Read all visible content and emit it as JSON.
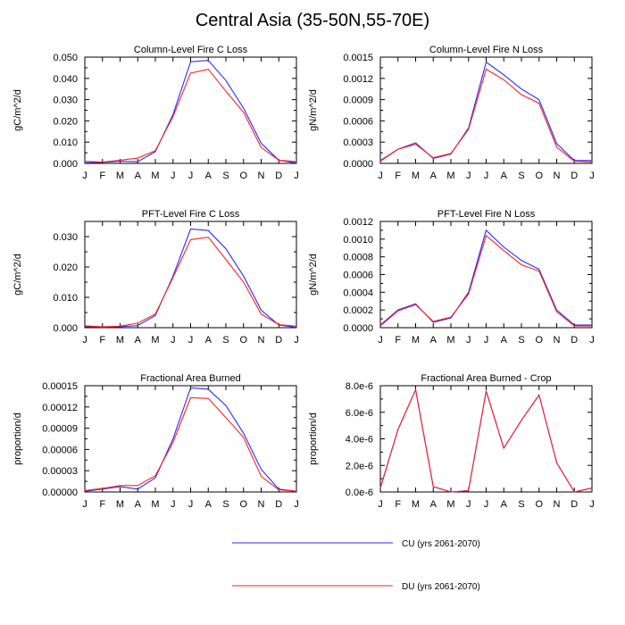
{
  "title": "Central Asia (35-50N,55-70E)",
  "colors": {
    "cu": "#2a2aff",
    "du": "#ff2020"
  },
  "legend": {
    "cu_label": "CU (yrs 2061-2070)",
    "du_label": "DU (yrs 2061-2070)"
  },
  "chart_data": [
    {
      "type": "line",
      "title": "Column-Level Fire C Loss",
      "ylabel": "gC/m^2/d",
      "ylim": [
        0,
        0.05
      ],
      "yticks": [
        0,
        0.01,
        0.02,
        0.03,
        0.04,
        0.05
      ],
      "ytick_labels": [
        "0.000",
        "0.010",
        "0.020",
        "0.030",
        "0.040",
        "0.050"
      ],
      "x_labels": [
        "J",
        "F",
        "M",
        "A",
        "M",
        "J",
        "J",
        "A",
        "S",
        "O",
        "N",
        "D",
        "J"
      ],
      "series": [
        {
          "name": "CU (yrs 2061-2070)",
          "values": [
            0.0003,
            0.0005,
            0.001,
            0.0008,
            0.0055,
            0.023,
            0.0478,
            0.0485,
            0.039,
            0.026,
            0.0095,
            0.0015,
            0.0002
          ]
        },
        {
          "name": "DU (yrs 2061-2070)",
          "values": [
            0.001,
            0.0006,
            0.0015,
            0.0025,
            0.006,
            0.022,
            0.0425,
            0.0443,
            0.034,
            0.024,
            0.0075,
            0.0015,
            0.0008
          ]
        }
      ]
    },
    {
      "type": "line",
      "title": "Column-Level Fire N Loss",
      "ylabel": "gN/m^2/d",
      "ylim": [
        0,
        0.0015
      ],
      "yticks": [
        0,
        0.0003,
        0.0006,
        0.0009,
        0.0012,
        0.0015
      ],
      "ytick_labels": [
        "0.0000",
        "0.0003",
        "0.0006",
        "0.0009",
        "0.0012",
        "0.0015"
      ],
      "x_labels": [
        "J",
        "F",
        "M",
        "A",
        "M",
        "J",
        "J",
        "A",
        "S",
        "O",
        "N",
        "D",
        "J"
      ],
      "series": [
        {
          "name": "CU (yrs 2061-2070)",
          "values": [
            4e-05,
            0.0002,
            0.00029,
            7e-05,
            0.00013,
            0.0005,
            0.00143,
            0.00125,
            0.00105,
            0.0009,
            0.00028,
            4e-05,
            4e-05
          ]
        },
        {
          "name": "DU (yrs 2061-2070)",
          "values": [
            3e-05,
            0.0002,
            0.00027,
            8e-05,
            0.00014,
            0.00048,
            0.00133,
            0.00118,
            0.00097,
            0.00085,
            0.00023,
            3e-05,
            2e-05
          ]
        }
      ]
    },
    {
      "type": "line",
      "title": "PFT-Level Fire C Loss",
      "ylabel": "gC/m^2/d",
      "ylim": [
        0,
        0.035
      ],
      "yticks": [
        0,
        0.01,
        0.02,
        0.03
      ],
      "ytick_labels": [
        "0.000",
        "0.010",
        "0.020",
        "0.030"
      ],
      "x_labels": [
        "J",
        "F",
        "M",
        "A",
        "M",
        "J",
        "J",
        "A",
        "S",
        "O",
        "N",
        "D",
        "J"
      ],
      "series": [
        {
          "name": "CU (yrs 2061-2070)",
          "values": [
            0.0003,
            0.0002,
            0.0003,
            0.0007,
            0.004,
            0.017,
            0.0325,
            0.032,
            0.026,
            0.017,
            0.0058,
            0.0009,
            0.0001
          ]
        },
        {
          "name": "DU (yrs 2061-2070)",
          "values": [
            0.0006,
            0.0003,
            0.0005,
            0.0015,
            0.0045,
            0.0165,
            0.029,
            0.0298,
            0.0225,
            0.015,
            0.0045,
            0.001,
            0.0005
          ]
        }
      ]
    },
    {
      "type": "line",
      "title": "PFT-Level Fire N Loss",
      "ylabel": "gN/m^2/d",
      "ylim": [
        0,
        0.0012
      ],
      "yticks": [
        0,
        0.0002,
        0.0004,
        0.0006,
        0.0008,
        0.001,
        0.0012
      ],
      "ytick_labels": [
        "0.0000",
        "0.0002",
        "0.0004",
        "0.0006",
        "0.0008",
        "0.0010",
        "0.0012"
      ],
      "x_labels": [
        "J",
        "F",
        "M",
        "A",
        "M",
        "J",
        "J",
        "A",
        "S",
        "O",
        "N",
        "D",
        "J"
      ],
      "series": [
        {
          "name": "CU (yrs 2061-2070)",
          "values": [
            3e-05,
            0.0002,
            0.00027,
            6e-05,
            0.00011,
            0.0004,
            0.0011,
            0.00091,
            0.00076,
            0.00066,
            0.0002,
            3e-05,
            3e-05
          ]
        },
        {
          "name": "DU (yrs 2061-2070)",
          "values": [
            2e-05,
            0.00019,
            0.00026,
            7e-05,
            0.00012,
            0.00038,
            0.00104,
            0.00087,
            0.00071,
            0.00064,
            0.00018,
            2e-05,
            2e-05
          ]
        }
      ]
    },
    {
      "type": "line",
      "title": "Fractional Area Burned",
      "ylabel": "proportion/d",
      "ylim": [
        0,
        0.00015
      ],
      "yticks": [
        0,
        3e-05,
        6e-05,
        9e-05,
        0.00012,
        0.00015
      ],
      "ytick_labels": [
        "0.00000",
        "0.00003",
        "0.00006",
        "0.00009",
        "0.00012",
        "0.00015"
      ],
      "x_labels": [
        "J",
        "F",
        "M",
        "A",
        "M",
        "J",
        "J",
        "A",
        "S",
        "O",
        "N",
        "D",
        "J"
      ],
      "series": [
        {
          "name": "CU (yrs 2061-2070)",
          "values": [
            1e-06,
            4e-06,
            7.5e-06,
            4e-06,
            2e-05,
            7.5e-05,
            0.000147,
            0.000145,
            0.000122,
            8.3e-05,
            3.2e-05,
            4e-06,
            1e-06
          ]
        },
        {
          "name": "DU (yrs 2061-2070)",
          "values": [
            2e-06,
            5e-06,
            9e-06,
            9e-06,
            2.3e-05,
            7e-05,
            0.000133,
            0.000132,
            0.000105,
            7.7e-05,
            2.2e-05,
            3e-06,
            1e-06
          ]
        }
      ]
    },
    {
      "type": "line",
      "title": "Fractional Area Burned - Crop",
      "ylabel": "proportion/d",
      "ylim": [
        0,
        8e-06
      ],
      "yticks": [
        0,
        2e-06,
        4e-06,
        6e-06,
        8e-06
      ],
      "ytick_labels": [
        "0.0e-6",
        "2.0e-6",
        "4.0e-6",
        "6.0e-6",
        "8.0e-6"
      ],
      "x_labels": [
        "J",
        "F",
        "M",
        "A",
        "M",
        "J",
        "J",
        "A",
        "S",
        "O",
        "N",
        "D",
        "J"
      ],
      "series": [
        {
          "name": "CU (yrs 2061-2070)",
          "values": [
            3e-07,
            4.7e-06,
            7.7e-06,
            4e-07,
            0.0,
            1e-07,
            7.6e-06,
            3.3e-06,
            5.4e-06,
            7.3e-06,
            2.2e-06,
            0.0,
            3e-07
          ]
        },
        {
          "name": "DU (yrs 2061-2070)",
          "values": [
            3e-07,
            4.7e-06,
            7.7e-06,
            4e-07,
            0.0,
            1e-07,
            7.6e-06,
            3.3e-06,
            5.4e-06,
            7.3e-06,
            2.2e-06,
            0.0,
            3e-07
          ]
        }
      ]
    }
  ]
}
